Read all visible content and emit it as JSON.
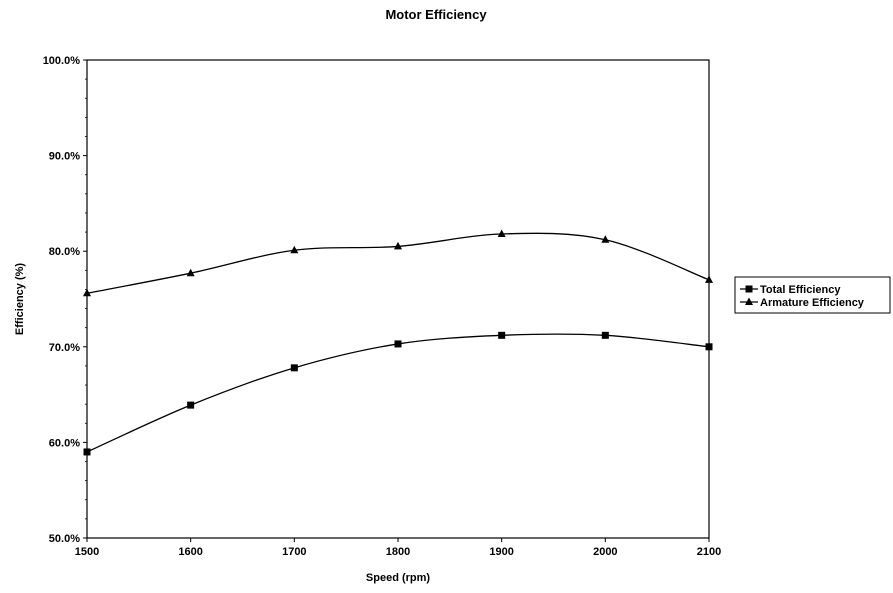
{
  "chart_data": {
    "type": "line",
    "title": "Motor Efficiency",
    "xlabel": "Speed (rpm)",
    "ylabel": "Efficiency (%)",
    "x": [
      1500,
      1600,
      1700,
      1800,
      1900,
      2000,
      2100
    ],
    "xlim": [
      1500,
      2100
    ],
    "ylim": [
      50,
      100
    ],
    "x_ticks": [
      "1500",
      "1600",
      "1700",
      "1800",
      "1900",
      "2000",
      "2100"
    ],
    "y_ticks": [
      "50.0%",
      "60.0%",
      "70.0%",
      "80.0%",
      "90.0%",
      "100.0%"
    ],
    "grid": false,
    "legend_position": "right",
    "series": [
      {
        "name": "Total Efficiency",
        "marker": "square",
        "values": [
          59.0,
          63.9,
          67.8,
          70.3,
          71.2,
          71.2,
          70.0
        ]
      },
      {
        "name": "Armature Efficiency",
        "marker": "triangle",
        "values": [
          75.6,
          77.7,
          80.1,
          80.5,
          81.8,
          81.2,
          77.0
        ]
      }
    ],
    "colors": {
      "line": "#000000",
      "background": "#ffffff"
    }
  }
}
